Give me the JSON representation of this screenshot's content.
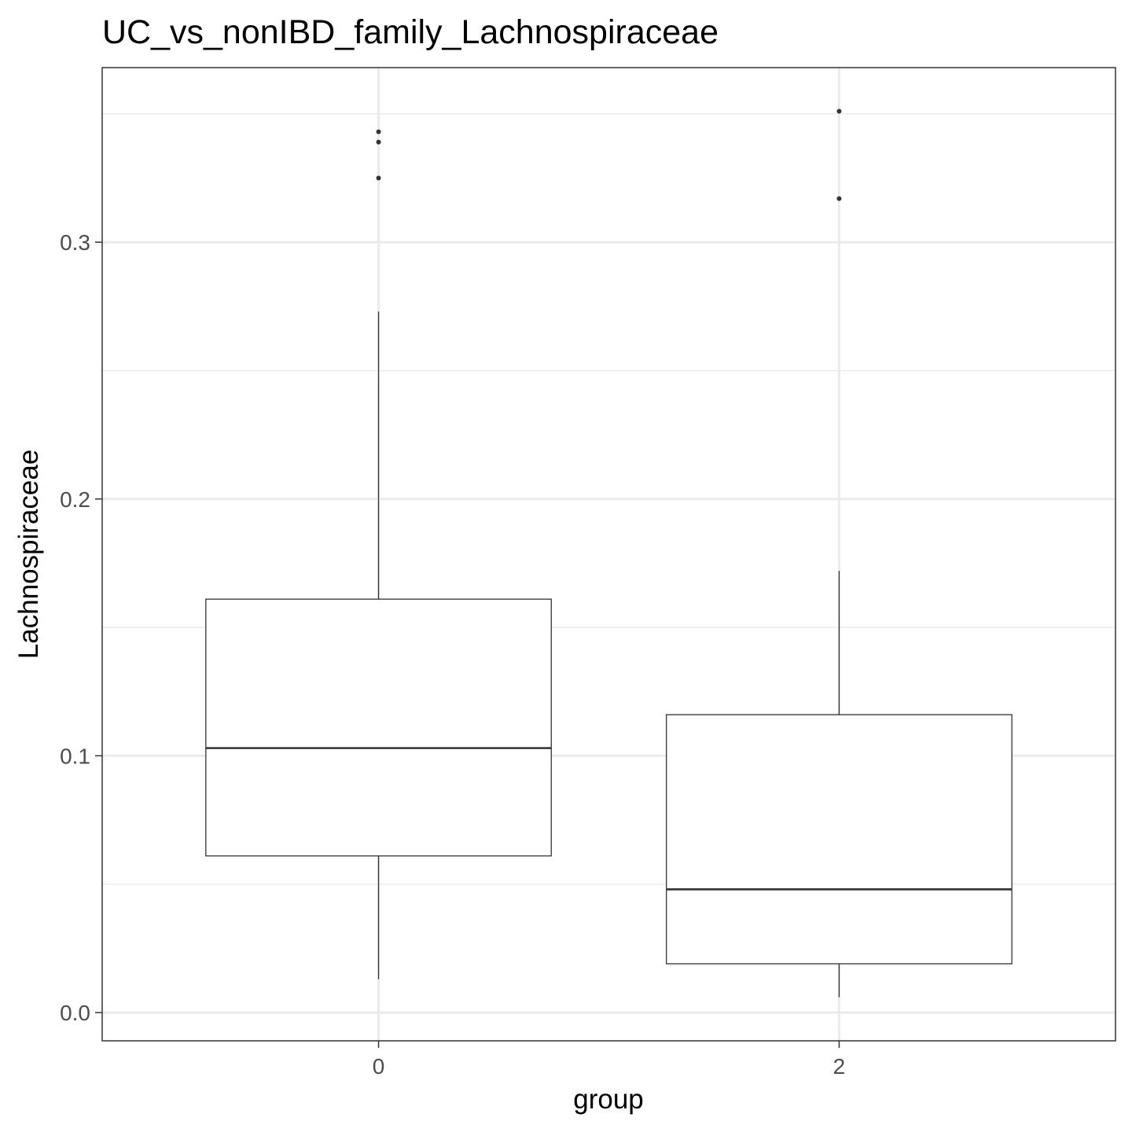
{
  "chart_data": {
    "type": "boxplot",
    "title": "UC_vs_nonIBD_family_Lachnospiraceae",
    "xlabel": "group",
    "ylabel": "Lachnospiraceae",
    "categories": [
      "0",
      "2"
    ],
    "y_ticks": [
      "0.0",
      "0.1",
      "0.2",
      "0.3"
    ],
    "ylim": [
      -0.011,
      0.368
    ],
    "grid": true,
    "legend": "none",
    "boxes": [
      {
        "group": "0",
        "whisker_low": 0.013,
        "q1": 0.061,
        "median": 0.103,
        "q3": 0.161,
        "whisker_high": 0.273,
        "outliers": [
          0.325,
          0.339,
          0.343
        ]
      },
      {
        "group": "2",
        "whisker_low": 0.006,
        "q1": 0.019,
        "median": 0.048,
        "q3": 0.116,
        "whisker_high": 0.172,
        "outliers": [
          0.317,
          0.351
        ]
      }
    ]
  },
  "colors": {
    "panel_border": "#333333",
    "box_line": "#333333",
    "grid_major": "#ebebeb",
    "grid_minor": "#ebebeb",
    "tick_label": "#4d4d4d",
    "text": "#000000"
  }
}
